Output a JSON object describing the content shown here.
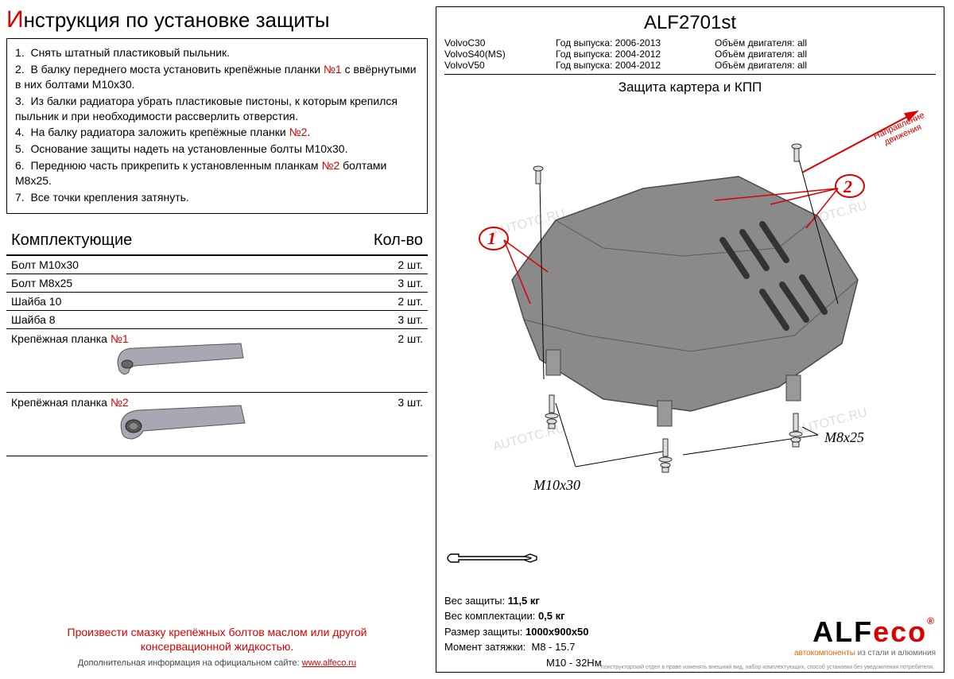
{
  "left": {
    "title_first": "И",
    "title_rest": "нструкция по установке защиты",
    "instructions": [
      {
        "n": "1.",
        "text": "Снять штатный пластиковый пыльник."
      },
      {
        "n": "2.",
        "text": "В балку переднего моста установить крепёжные планки ",
        "red": "№1",
        "text2": " с ввёрнутыми в них болтами М10х30."
      },
      {
        "n": "3.",
        "text": "Из балки радиатора убрать пластиковые пистоны, к которым крепился пыльник и при необходимости рассверлить отверстия."
      },
      {
        "n": "4.",
        "text": "На балку радиатора заложить крепёжные планки ",
        "red": "№2",
        "text2": "."
      },
      {
        "n": "5.",
        "text": "Основание защиты надеть на установленные болты М10х30."
      },
      {
        "n": "6.",
        "text": "Переднюю часть прикрепить к установленным планкам ",
        "red": "№2",
        "text2": " болтами М8х25."
      },
      {
        "n": "7.",
        "text": "Все точки крепления затянуть."
      }
    ],
    "components_label": "Комплектующие",
    "qty_label": "Кол-во",
    "components": [
      {
        "name": "Болт М10х30",
        "qty": "2 шт."
      },
      {
        "name": "Болт М8х25",
        "qty": "3 шт."
      },
      {
        "name": "Шайба 10",
        "qty": "2 шт."
      },
      {
        "name": "Шайба 8",
        "qty": "3 шт."
      }
    ],
    "plank1": {
      "name": "Крепёжная планка ",
      "red": "№1",
      "qty": "2 шт."
    },
    "plank2": {
      "name": "Крепёжная планка ",
      "red": "№2",
      "qty": "3 шт."
    },
    "warning": "Произвести смазку крепёжных болтов маслом или другой консервационной жидкостью.",
    "link_prefix": "Дополнительная информация на официальном сайте: ",
    "link_url": "www.alfeco.ru"
  },
  "right": {
    "code": "ALF2701st",
    "vehicles": [
      {
        "model": "VolvoC30",
        "years_label": "Год выпуска:",
        "years": "2006-2013",
        "engine_label": "Объём двигателя:",
        "engine": "all"
      },
      {
        "model": "VolvoS40(MS)",
        "years_label": "Год выпуска:",
        "years": "2004-2012",
        "engine_label": "Объём двигателя:",
        "engine": "all"
      },
      {
        "model": "VolvoV50",
        "years_label": "Год выпуска:",
        "years": "2004-2012",
        "engine_label": "Объём двигателя:",
        "engine": "all"
      }
    ],
    "diagram_title": "Защита картера и КПП",
    "direction1": "Направление",
    "direction2": "движения",
    "callout1": "1",
    "callout2": "2",
    "bolt1": "M10x30",
    "bolt2": "M8x25",
    "specs": {
      "weight_label": "Вес защиты:",
      "weight": "11,5 кг",
      "kit_weight_label": "Вес комплектации:",
      "kit_weight": "0,5 кг",
      "size_label": "Размер защиты:",
      "size": "1000x900x50",
      "torque_label": "Момент затяжки:",
      "torque1": "М8 - 15.7",
      "torque2": "М10 - 32Нм"
    },
    "logo_alf": "ALF",
    "logo_eco": "eco",
    "logo_r": "®",
    "logo_sub1": "автокомпоненты",
    "logo_sub2": " из стали и алюминия",
    "disclaimer": "Конструкторский отдел в праве изменять внешний вид, набор комплектующих, способ установки без уведомления потребителя.",
    "colors": {
      "red": "#d00000",
      "plate_fill": "#8a8a8a",
      "plate_stroke": "#4a4a4a",
      "plank_fill": "#a8a8b4"
    }
  },
  "watermark": "AUTOTC.RU"
}
